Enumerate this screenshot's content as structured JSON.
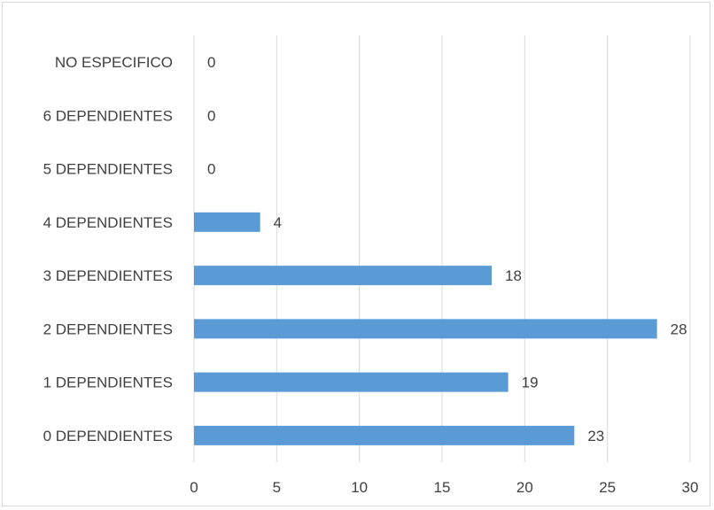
{
  "chart_data": {
    "type": "bar",
    "orientation": "horizontal",
    "categories": [
      "NO ESPECIFICO",
      "6 DEPENDIENTES",
      "5 DEPENDIENTES",
      "4 DEPENDIENTES",
      "3 DEPENDIENTES",
      "2 DEPENDIENTES",
      "1 DEPENDIENTES",
      "0 DEPENDIENTES"
    ],
    "values": [
      0,
      0,
      0,
      4,
      18,
      28,
      19,
      23
    ],
    "xlim": [
      0,
      30
    ],
    "xticks": [
      0,
      5,
      10,
      15,
      20,
      25,
      30
    ],
    "grid": "vertical",
    "data_labels": true,
    "bar_color": "#5b9bd5"
  }
}
